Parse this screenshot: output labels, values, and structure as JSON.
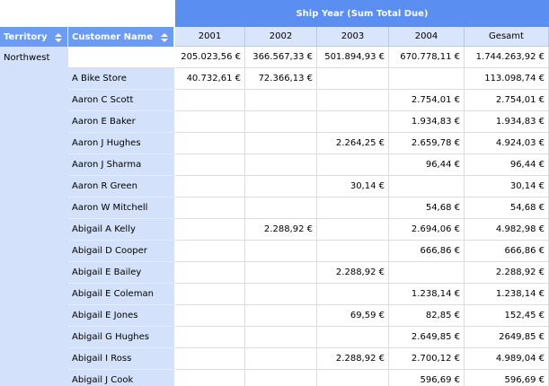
{
  "column_header": "Ship Year (Sum Total Due)",
  "row_headers": [
    "Territory",
    "Customer Name"
  ],
  "columns": [
    "2001",
    "2002",
    "2003",
    "2004",
    "Gesamt"
  ],
  "rows": [
    {
      "territory": "Northwest",
      "customer": null,
      "cells": [
        "205.023,56 €",
        "366.567,33 €",
        "501.894,93 €",
        "670.778,11 €",
        "1.744.263,92 €"
      ]
    },
    {
      "territory": null,
      "customer": "A Bike Store",
      "cells": [
        "40.732,61 €",
        "72.366,13 €",
        null,
        null,
        "113.098,74 €"
      ]
    },
    {
      "territory": null,
      "customer": "Aaron C Scott",
      "cells": [
        null,
        null,
        null,
        "2.754,01 €",
        "2.754,01 €"
      ]
    },
    {
      "territory": null,
      "customer": "Aaron E Baker",
      "cells": [
        null,
        null,
        null,
        "1.934,83 €",
        "1.934,83 €"
      ]
    },
    {
      "territory": null,
      "customer": "Aaron J Hughes",
      "cells": [
        null,
        null,
        "2.264,25 €",
        "2.659,78 €",
        "4.924,03 €"
      ]
    },
    {
      "territory": null,
      "customer": "Aaron J Sharma",
      "cells": [
        null,
        null,
        null,
        "96,44 €",
        "96,44 €"
      ]
    },
    {
      "territory": null,
      "customer": "Aaron R Green",
      "cells": [
        null,
        null,
        "30,14 €",
        null,
        "30,14 €"
      ]
    },
    {
      "territory": null,
      "customer": "Aaron W Mitchell",
      "cells": [
        null,
        null,
        null,
        "54,68 €",
        "54,68 €"
      ]
    },
    {
      "territory": null,
      "customer": "Abigail A Kelly",
      "cells": [
        null,
        "2.288,92 €",
        null,
        "2.694,06 €",
        "4.982,98 €"
      ]
    },
    {
      "territory": null,
      "customer": "Abigail D Cooper",
      "cells": [
        null,
        null,
        null,
        "666,86 €",
        "666,86 €"
      ]
    },
    {
      "territory": null,
      "customer": "Abigail E Bailey",
      "cells": [
        null,
        null,
        "2.288,92 €",
        null,
        "2.288,92 €"
      ]
    },
    {
      "territory": null,
      "customer": "Abigail E Coleman",
      "cells": [
        null,
        null,
        null,
        "1.238,14 €",
        "1.238,14 €"
      ]
    },
    {
      "territory": null,
      "customer": "Abigail E Jones",
      "cells": [
        null,
        null,
        "69,59 €",
        "82,85 €",
        "152,45 €"
      ]
    },
    {
      "territory": null,
      "customer": "Abigail G Hughes",
      "cells": [
        null,
        null,
        null,
        "2.649,85 €",
        "2649,85 €"
      ]
    },
    {
      "territory": null,
      "customer": "Abigail I Ross",
      "cells": [
        null,
        null,
        "2.288,92 €",
        "2.700,12 €",
        "4.989,04 €"
      ]
    },
    {
      "territory": null,
      "customer": "Abigail J Cook",
      "cells": [
        null,
        null,
        null,
        "596,69 €",
        "596,69 €"
      ]
    }
  ]
}
